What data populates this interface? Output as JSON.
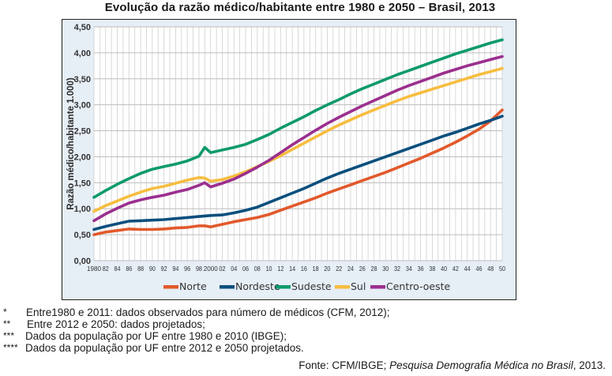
{
  "chart_data": {
    "type": "line",
    "title": "Evolução da razão médico/habitante entre  1980 e 2050 – Brasil, 2013",
    "xlabel": "",
    "ylabel": "Razão médico/habitante 1.000)",
    "ylim": [
      0,
      4.5
    ],
    "xlim": [
      1980,
      2050
    ],
    "yticks": [
      "0,00",
      "0,50",
      "1,00",
      "1,50",
      "2,00",
      "2,50",
      "3,00",
      "3,50",
      "4,00",
      "4,50"
    ],
    "xticks": [
      "1980",
      "82",
      "84",
      "86",
      "88",
      "90",
      "92",
      "94",
      "96",
      "98",
      "2000",
      "02",
      "04",
      "06",
      "08",
      "10",
      "12",
      "14",
      "16",
      "18",
      "20",
      "22",
      "24",
      "26",
      "28",
      "30",
      "32",
      "34",
      "36",
      "38",
      "40",
      "42",
      "44",
      "46",
      "48",
      "50"
    ],
    "grid": true,
    "legend_position": "bottom",
    "x": [
      1980,
      1982,
      1984,
      1986,
      1988,
      1990,
      1992,
      1994,
      1996,
      1998,
      1999,
      2000,
      2002,
      2004,
      2006,
      2008,
      2010,
      2012,
      2014,
      2016,
      2018,
      2020,
      2022,
      2024,
      2026,
      2028,
      2030,
      2032,
      2034,
      2036,
      2038,
      2040,
      2042,
      2044,
      2046,
      2048,
      2050
    ],
    "series": [
      {
        "name": "Norte",
        "color": "#e2592b",
        "values": [
          0.5,
          0.55,
          0.58,
          0.61,
          0.6,
          0.6,
          0.61,
          0.63,
          0.64,
          0.67,
          0.67,
          0.65,
          0.7,
          0.75,
          0.79,
          0.83,
          0.89,
          0.97,
          1.05,
          1.13,
          1.21,
          1.3,
          1.38,
          1.46,
          1.54,
          1.62,
          1.7,
          1.79,
          1.88,
          1.97,
          2.07,
          2.17,
          2.28,
          2.4,
          2.53,
          2.69,
          2.9
        ]
      },
      {
        "name": "Nordeste",
        "color": "#0a4f7d",
        "values": [
          0.6,
          0.66,
          0.71,
          0.76,
          0.77,
          0.78,
          0.79,
          0.81,
          0.83,
          0.85,
          0.86,
          0.87,
          0.88,
          0.92,
          0.97,
          1.03,
          1.12,
          1.21,
          1.3,
          1.39,
          1.49,
          1.59,
          1.68,
          1.76,
          1.84,
          1.92,
          2.0,
          2.08,
          2.16,
          2.24,
          2.32,
          2.4,
          2.47,
          2.55,
          2.63,
          2.7,
          2.78
        ]
      },
      {
        "name": "Sudeste",
        "color": "#0e9a6c",
        "values": [
          1.22,
          1.35,
          1.47,
          1.58,
          1.68,
          1.76,
          1.81,
          1.86,
          1.92,
          2.01,
          2.18,
          2.08,
          2.13,
          2.18,
          2.24,
          2.33,
          2.43,
          2.55,
          2.66,
          2.77,
          2.89,
          3.0,
          3.1,
          3.21,
          3.31,
          3.4,
          3.49,
          3.58,
          3.66,
          3.74,
          3.82,
          3.9,
          3.98,
          4.05,
          4.12,
          4.19,
          4.25
        ]
      },
      {
        "name": "Sul",
        "color": "#f7bd3f",
        "values": [
          0.95,
          1.06,
          1.15,
          1.24,
          1.32,
          1.39,
          1.43,
          1.49,
          1.55,
          1.6,
          1.59,
          1.53,
          1.56,
          1.63,
          1.71,
          1.81,
          1.91,
          2.02,
          2.14,
          2.26,
          2.38,
          2.5,
          2.61,
          2.71,
          2.81,
          2.9,
          2.99,
          3.08,
          3.16,
          3.23,
          3.3,
          3.37,
          3.44,
          3.51,
          3.58,
          3.64,
          3.7
        ]
      },
      {
        "name": "Centro-oeste",
        "color": "#9b2f8e",
        "values": [
          0.77,
          0.9,
          1.01,
          1.11,
          1.17,
          1.22,
          1.26,
          1.32,
          1.37,
          1.45,
          1.5,
          1.42,
          1.49,
          1.57,
          1.68,
          1.8,
          1.93,
          2.08,
          2.23,
          2.37,
          2.51,
          2.64,
          2.76,
          2.87,
          2.98,
          3.08,
          3.18,
          3.28,
          3.37,
          3.45,
          3.53,
          3.61,
          3.68,
          3.75,
          3.81,
          3.87,
          3.93
        ]
      }
    ]
  },
  "notes": [
    {
      "mark": "*",
      "text": "Entre1980 e 2011: dados observados para número  de médicos (CFM, 2012);"
    },
    {
      "mark": "**",
      "text": "Entre 2012 e 2050: dados projetados;"
    },
    {
      "mark": "***",
      "text": "Dados da população  por UF entre  1980 e 2010 (IBGE);"
    },
    {
      "mark": "****",
      "text": "Dados da população  por UF entre  2012 e 2050 projetados."
    }
  ],
  "source": {
    "prefix": "Fonte:  CFM/IBGE; ",
    "italic": "Pesquisa Demografia Médica no Brasil",
    "suffix": ", 2013."
  }
}
